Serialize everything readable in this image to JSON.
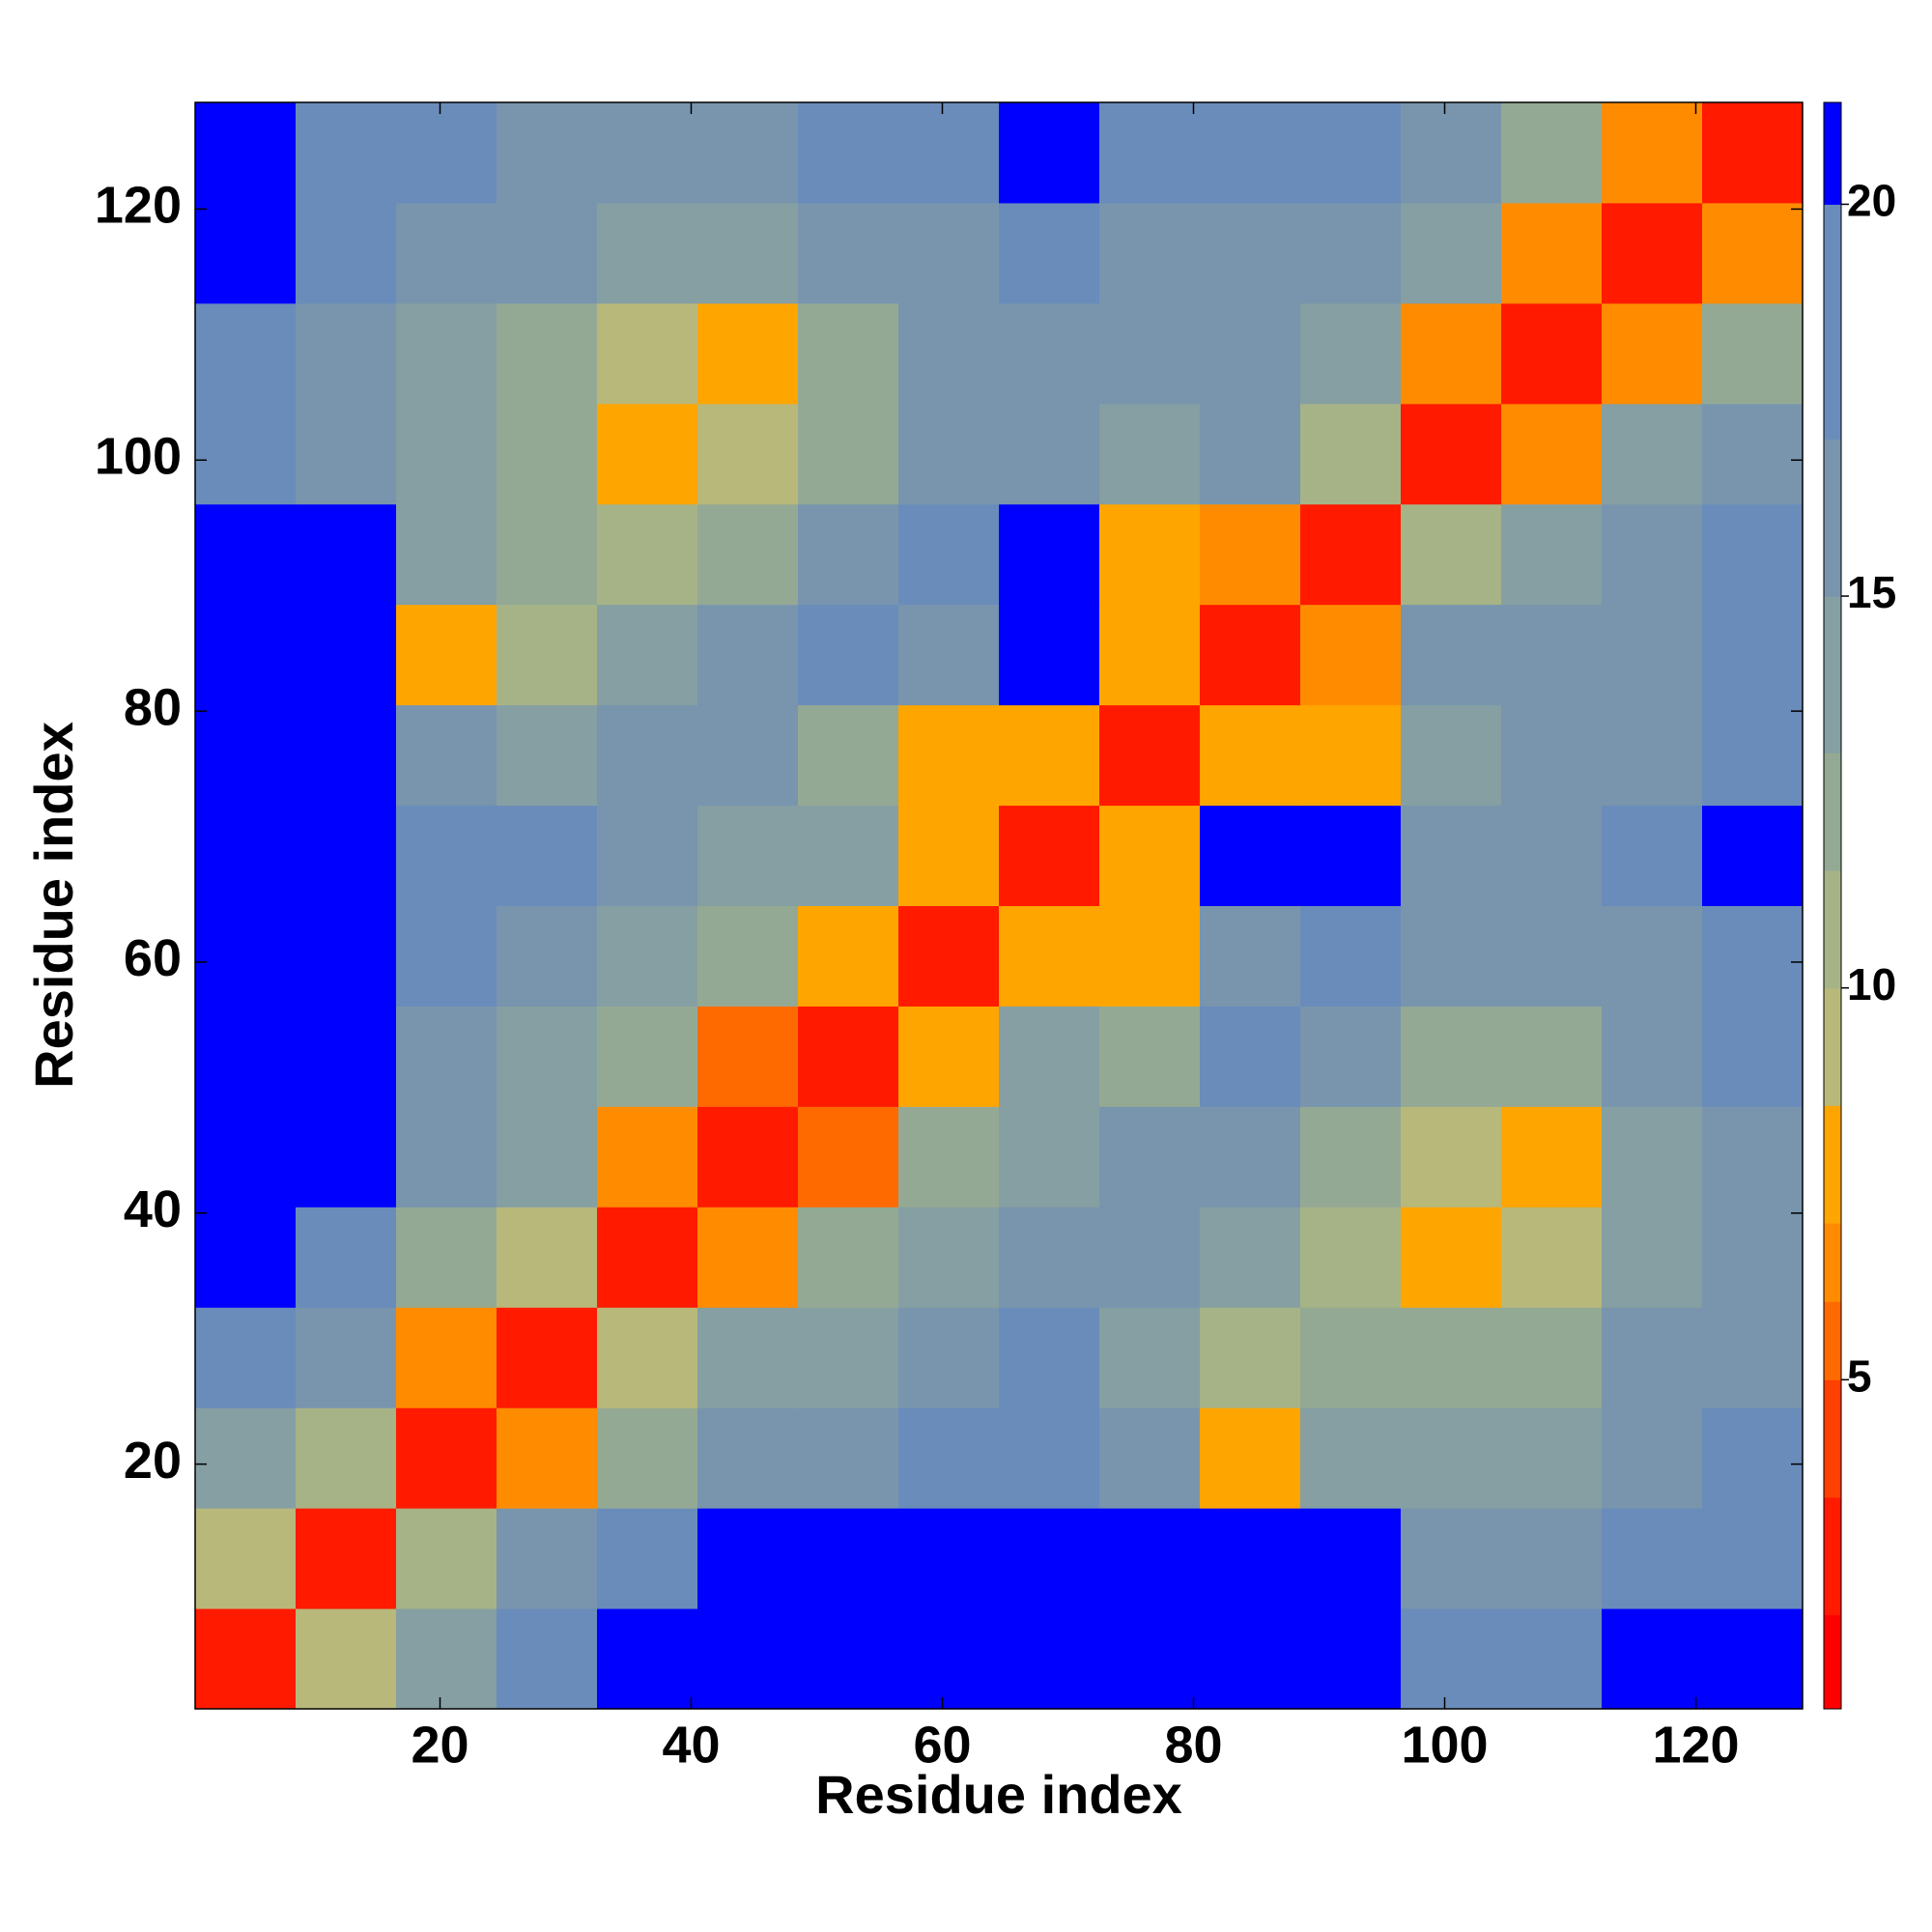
{
  "chart_data": {
    "type": "heatmap",
    "x_label": "Residue index",
    "y_label": "Residue index",
    "x": [
      4.5,
      12.5,
      20.5,
      28.5,
      36.5,
      44.5,
      52.5,
      60.5,
      68.5,
      76.5,
      84.5,
      92.5,
      100.5,
      108.5,
      116.5,
      124.5
    ],
    "y": [
      4.5,
      12.5,
      20.5,
      28.5,
      36.5,
      44.5,
      52.5,
      60.5,
      68.5,
      76.5,
      84.5,
      92.5,
      100.5,
      108.5,
      116.5,
      124.5
    ],
    "values": [
      [
        3.5,
        9,
        15,
        19,
        21,
        21,
        21,
        21,
        21,
        21,
        21,
        21,
        19,
        18,
        21,
        21
      ],
      [
        9,
        3.5,
        11,
        16,
        19,
        21,
        21,
        21,
        21,
        21,
        21,
        21,
        17,
        17,
        19,
        20
      ],
      [
        15,
        11,
        3.5,
        7,
        12,
        16,
        17,
        19,
        20,
        17,
        8,
        15,
        14,
        15,
        17,
        19
      ],
      [
        19,
        16,
        7,
        3.5,
        9,
        14,
        14,
        17,
        19,
        15,
        11,
        13,
        12,
        13,
        16,
        17
      ],
      [
        21,
        19,
        12,
        9,
        3.5,
        7,
        13,
        15,
        16,
        16,
        14,
        11,
        8,
        9,
        14,
        16
      ],
      [
        21,
        21,
        16,
        14,
        7,
        3.5,
        6,
        13,
        15,
        17,
        17,
        13,
        9,
        8,
        15,
        17
      ],
      [
        21,
        21,
        17,
        14,
        13,
        6,
        3.5,
        8,
        14,
        13,
        18,
        16,
        13,
        13,
        17,
        18
      ],
      [
        21,
        21,
        19,
        17,
        15,
        13,
        8,
        3.5,
        8,
        8,
        16,
        19,
        16,
        17,
        17,
        19
      ],
      [
        21,
        21,
        20,
        19,
        16,
        15,
        14,
        8,
        3.5,
        8,
        21,
        21,
        17,
        17,
        19,
        21
      ],
      [
        21,
        21,
        17,
        15,
        16,
        17,
        13,
        8,
        8,
        3.5,
        8,
        8,
        14,
        16,
        17,
        20
      ],
      [
        21,
        21,
        8,
        11,
        14,
        17,
        18,
        16,
        21,
        8,
        3.5,
        7,
        16,
        16,
        17,
        18
      ],
      [
        21,
        21,
        15,
        13,
        11,
        13,
        16,
        19,
        21,
        8,
        7,
        3.5,
        11,
        15,
        17,
        18
      ],
      [
        19,
        17,
        14,
        12,
        8,
        9,
        13,
        16,
        17,
        14,
        16,
        11,
        3.5,
        7,
        14,
        17
      ],
      [
        18,
        17,
        15,
        13,
        9,
        8,
        13,
        17,
        17,
        16,
        16,
        15,
        7,
        3.5,
        7,
        13
      ],
      [
        21,
        19,
        17,
        16,
        14,
        15,
        17,
        17,
        19,
        17,
        17,
        17,
        14,
        7,
        3.5,
        7
      ],
      [
        21,
        20,
        19,
        17,
        16,
        17,
        18,
        19,
        21,
        20,
        18,
        18,
        17,
        13,
        7,
        3.5
      ]
    ],
    "xlim": [
      0.5,
      128.5
    ],
    "ylim": [
      0.5,
      128.5
    ],
    "xticks": [
      20,
      40,
      60,
      80,
      100,
      120
    ],
    "yticks": [
      20,
      40,
      60,
      80,
      100,
      120
    ],
    "color_bounds": [
      0.8,
      2,
      3.5,
      5,
      6,
      7,
      8.5,
      10,
      11.5,
      13,
      15,
      17,
      20,
      21.3
    ],
    "colors": [
      "#ff0000",
      "#ff1a00",
      "#ff4000",
      "#ff6a00",
      "#ff8c00",
      "#ffa500",
      "#b8b87a",
      "#a6b387",
      "#94a994",
      "#859fa3",
      "#7895ad",
      "#6a8cba",
      "#0000ff"
    ],
    "colorbar_ticks": [
      5,
      10,
      15,
      20
    ]
  }
}
